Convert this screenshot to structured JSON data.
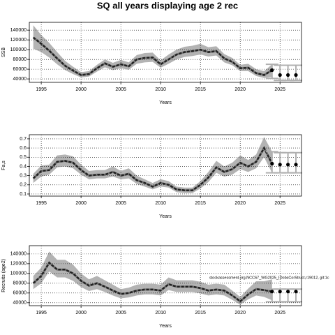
{
  "chart_data": [
    {
      "type": "line",
      "title": "SQ all years displaying age 2 rec",
      "xlabel": "Years",
      "ylabel": "SSB",
      "x": [
        1994,
        1995,
        1996,
        1997,
        1998,
        1999,
        2000,
        2001,
        2002,
        2003,
        2004,
        2005,
        2006,
        2007,
        2008,
        2009,
        2010,
        2011,
        2012,
        2013,
        2014,
        2015,
        2016,
        2017,
        2018,
        2019,
        2020,
        2021,
        2022,
        2023,
        2024,
        2025,
        2026,
        2027
      ],
      "values": [
        125000,
        112000,
        98000,
        82000,
        67000,
        57000,
        48000,
        50000,
        62000,
        72000,
        65000,
        70000,
        66000,
        80000,
        83000,
        84000,
        70000,
        80000,
        90000,
        95000,
        97000,
        100000,
        95000,
        97000,
        82000,
        75000,
        62000,
        63000,
        52000,
        48000,
        58000,
        null,
        null,
        null
      ],
      "lower": [
        102000,
        95000,
        84000,
        70000,
        58000,
        50000,
        43000,
        45000,
        55000,
        64000,
        58000,
        62000,
        59000,
        71000,
        74000,
        75000,
        63000,
        71000,
        80000,
        85000,
        87000,
        90000,
        86000,
        88000,
        74000,
        68000,
        56000,
        56000,
        46000,
        42000,
        44000,
        null,
        null,
        null
      ],
      "upper": [
        150000,
        130000,
        114000,
        95000,
        77000,
        65000,
        54000,
        56000,
        69000,
        80000,
        73000,
        79000,
        74000,
        89000,
        93000,
        94000,
        78000,
        90000,
        100000,
        106000,
        108000,
        112000,
        105000,
        107000,
        91000,
        83000,
        69000,
        71000,
        60000,
        56000,
        70000,
        null,
        null,
        null
      ],
      "proj_values": [
        null,
        null,
        null,
        null,
        null,
        null,
        null,
        null,
        null,
        null,
        null,
        null,
        null,
        null,
        null,
        null,
        null,
        null,
        null,
        null,
        null,
        null,
        null,
        null,
        null,
        null,
        null,
        null,
        null,
        null,
        58000,
        48000,
        48000,
        48000
      ],
      "proj_lower": [
        null,
        null,
        null,
        null,
        null,
        null,
        null,
        null,
        null,
        null,
        null,
        null,
        null,
        null,
        null,
        null,
        null,
        null,
        null,
        null,
        null,
        null,
        null,
        null,
        null,
        null,
        null,
        null,
        null,
        null,
        41000,
        37000,
        37000,
        37000
      ],
      "proj_upper": [
        null,
        null,
        null,
        null,
        null,
        null,
        null,
        null,
        null,
        null,
        null,
        null,
        null,
        null,
        null,
        null,
        null,
        null,
        null,
        null,
        null,
        null,
        null,
        null,
        null,
        null,
        null,
        null,
        null,
        null,
        70000,
        68000,
        68000,
        68000
      ],
      "color": "#222222",
      "band_color": "#b3b3b3",
      "proj_color": "#b0b0b0",
      "xlim": [
        1993.5,
        2027.7
      ],
      "xticks": [
        1995,
        2000,
        2005,
        2010,
        2015,
        2020,
        2025
      ],
      "ylim": [
        33000,
        156000
      ],
      "yticks": [
        40000,
        60000,
        80000,
        100000,
        120000,
        140000
      ],
      "grid": true
    },
    {
      "type": "line",
      "xlabel": "Years",
      "ylabel": "Fa,s",
      "x": [
        1994,
        1995,
        1996,
        1997,
        1998,
        1999,
        2000,
        2001,
        2002,
        2003,
        2004,
        2005,
        2006,
        2007,
        2008,
        2009,
        2010,
        2011,
        2012,
        2013,
        2014,
        2015,
        2016,
        2017,
        2018,
        2019,
        2020,
        2021,
        2022,
        2023,
        2024,
        2025,
        2026,
        2027
      ],
      "values": [
        0.27,
        0.35,
        0.36,
        0.45,
        0.46,
        0.44,
        0.36,
        0.3,
        0.31,
        0.31,
        0.34,
        0.3,
        0.32,
        0.25,
        0.22,
        0.18,
        0.22,
        0.2,
        0.15,
        0.14,
        0.14,
        0.2,
        0.28,
        0.39,
        0.34,
        0.37,
        0.44,
        0.4,
        0.45,
        0.6,
        0.43,
        null,
        null,
        null
      ],
      "lower": [
        0.22,
        0.29,
        0.31,
        0.39,
        0.4,
        0.38,
        0.31,
        0.26,
        0.27,
        0.27,
        0.29,
        0.26,
        0.27,
        0.21,
        0.18,
        0.15,
        0.18,
        0.17,
        0.12,
        0.11,
        0.11,
        0.16,
        0.23,
        0.33,
        0.29,
        0.31,
        0.37,
        0.34,
        0.38,
        0.5,
        0.33,
        null,
        null,
        null
      ],
      "upper": [
        0.32,
        0.41,
        0.42,
        0.52,
        0.53,
        0.51,
        0.42,
        0.35,
        0.36,
        0.36,
        0.4,
        0.35,
        0.38,
        0.3,
        0.26,
        0.22,
        0.26,
        0.24,
        0.18,
        0.17,
        0.17,
        0.24,
        0.34,
        0.46,
        0.4,
        0.44,
        0.52,
        0.47,
        0.53,
        0.72,
        0.56,
        null,
        null,
        null
      ],
      "proj_values": [
        null,
        null,
        null,
        null,
        null,
        null,
        null,
        null,
        null,
        null,
        null,
        null,
        null,
        null,
        null,
        null,
        null,
        null,
        null,
        null,
        null,
        null,
        null,
        null,
        null,
        null,
        null,
        null,
        null,
        null,
        0.43,
        0.42,
        0.42,
        0.42
      ],
      "proj_lower": [
        null,
        null,
        null,
        null,
        null,
        null,
        null,
        null,
        null,
        null,
        null,
        null,
        null,
        null,
        null,
        null,
        null,
        null,
        null,
        null,
        null,
        null,
        null,
        null,
        null,
        null,
        null,
        null,
        null,
        null,
        0.33,
        0.33,
        0.33,
        0.33
      ],
      "proj_upper": [
        null,
        null,
        null,
        null,
        null,
        null,
        null,
        null,
        null,
        null,
        null,
        null,
        null,
        null,
        null,
        null,
        null,
        null,
        null,
        null,
        null,
        null,
        null,
        null,
        null,
        null,
        null,
        null,
        null,
        null,
        0.56,
        0.55,
        0.55,
        0.55
      ],
      "color": "#222222",
      "band_color": "#b3b3b3",
      "proj_color": "#b0b0b0",
      "xlim": [
        1993.5,
        2027.7
      ],
      "xticks": [
        1995,
        2000,
        2005,
        2010,
        2015,
        2020,
        2025
      ],
      "ylim": [
        0.077,
        0.745
      ],
      "yticks": [
        0.1,
        0.2,
        0.3,
        0.4,
        0.5,
        0.6,
        0.7
      ],
      "grid": true
    },
    {
      "type": "line",
      "xlabel": "Years",
      "ylabel": "Recruits (age2)",
      "annotation": "stockassessment.org,NCC67_WG2025_IDobsCorStruct,r19012, git:1c",
      "x": [
        1994,
        1995,
        1996,
        1997,
        1998,
        1999,
        2000,
        2001,
        2002,
        2003,
        2004,
        2005,
        2006,
        2007,
        2008,
        2009,
        2010,
        2011,
        2012,
        2013,
        2014,
        2015,
        2016,
        2017,
        2018,
        2019,
        2020,
        2021,
        2022,
        2023,
        2024,
        2025,
        2026,
        2027
      ],
      "values": [
        80000,
        95000,
        122000,
        108000,
        108000,
        100000,
        85000,
        75000,
        80000,
        73000,
        65000,
        58000,
        60000,
        65000,
        67000,
        67000,
        65000,
        78000,
        73000,
        73000,
        73000,
        70000,
        65000,
        67000,
        65000,
        55000,
        43000,
        57000,
        68000,
        66000,
        63000,
        null,
        null,
        null
      ],
      "lower": [
        68000,
        80000,
        104000,
        92000,
        92000,
        85000,
        72000,
        64000,
        68000,
        62000,
        55000,
        49000,
        51000,
        55000,
        57000,
        57000,
        55000,
        66000,
        62000,
        62000,
        62000,
        59000,
        55000,
        57000,
        55000,
        46000,
        36000,
        47000,
        55000,
        52000,
        45000,
        null,
        null,
        null
      ],
      "upper": [
        95000,
        112000,
        145000,
        128000,
        128000,
        118000,
        100000,
        88000,
        95000,
        86000,
        77000,
        68000,
        71000,
        77000,
        79000,
        79000,
        77000,
        92000,
        86000,
        86000,
        86000,
        83000,
        77000,
        79000,
        77000,
        65000,
        52000,
        69000,
        84000,
        84000,
        88000,
        null,
        null,
        null
      ],
      "proj_values": [
        null,
        null,
        null,
        null,
        null,
        null,
        null,
        null,
        null,
        null,
        null,
        null,
        null,
        null,
        null,
        null,
        null,
        null,
        null,
        null,
        null,
        null,
        null,
        null,
        null,
        null,
        null,
        null,
        null,
        null,
        63000,
        63000,
        63000,
        63000
      ],
      "proj_lower": [
        null,
        null,
        null,
        null,
        null,
        null,
        null,
        null,
        null,
        null,
        null,
        null,
        null,
        null,
        null,
        null,
        null,
        null,
        null,
        null,
        null,
        null,
        null,
        null,
        null,
        null,
        null,
        null,
        null,
        null,
        42000,
        42000,
        42000,
        42000
      ],
      "proj_upper": [
        null,
        null,
        null,
        null,
        null,
        null,
        null,
        null,
        null,
        null,
        null,
        null,
        null,
        null,
        null,
        null,
        null,
        null,
        null,
        null,
        null,
        null,
        null,
        null,
        null,
        null,
        null,
        null,
        null,
        null,
        68000,
        68000,
        68000,
        68000
      ],
      "color": "#222222",
      "band_color": "#b3b3b3",
      "proj_color": "#b0b0b0",
      "xlim": [
        1993.5,
        2027.7
      ],
      "xticks": [
        1995,
        2000,
        2005,
        2010,
        2015,
        2020,
        2025
      ],
      "ylim": [
        34000,
        157000
      ],
      "yticks": [
        40000,
        60000,
        80000,
        100000,
        120000,
        140000
      ],
      "grid": true
    }
  ]
}
